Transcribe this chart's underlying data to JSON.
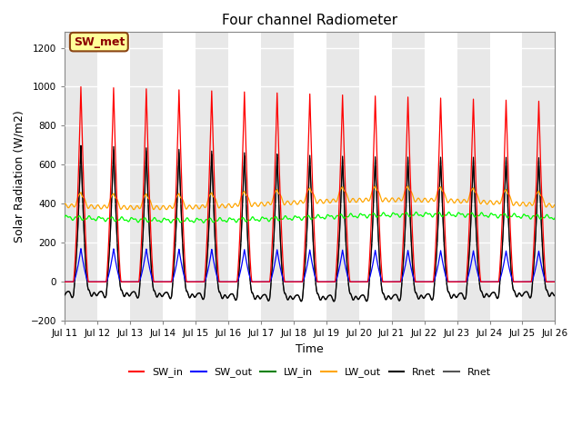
{
  "title": "Four channel Radiometer",
  "xlabel": "Time",
  "ylabel": "Solar Radiation (W/m2)",
  "ylim": [
    -200,
    1280
  ],
  "yticks": [
    -200,
    0,
    200,
    400,
    600,
    800,
    1000,
    1200
  ],
  "plot_bg_color": "#e8e8e8",
  "band_color_light": "#e8e8e8",
  "band_color_dark": "#d0d0d0",
  "grid_color": "white",
  "num_days": 15,
  "start_day": 11,
  "end_day": 26,
  "annotation_text": "SW_met",
  "annotation_bg": "#ffff99",
  "annotation_border": "#8B4513",
  "legend_entries": [
    "SW_in",
    "SW_out",
    "LW_in",
    "LW_out",
    "Rnet",
    "Rnet"
  ],
  "legend_colors": [
    "red",
    "blue",
    "green",
    "orange",
    "black",
    "#555555"
  ]
}
